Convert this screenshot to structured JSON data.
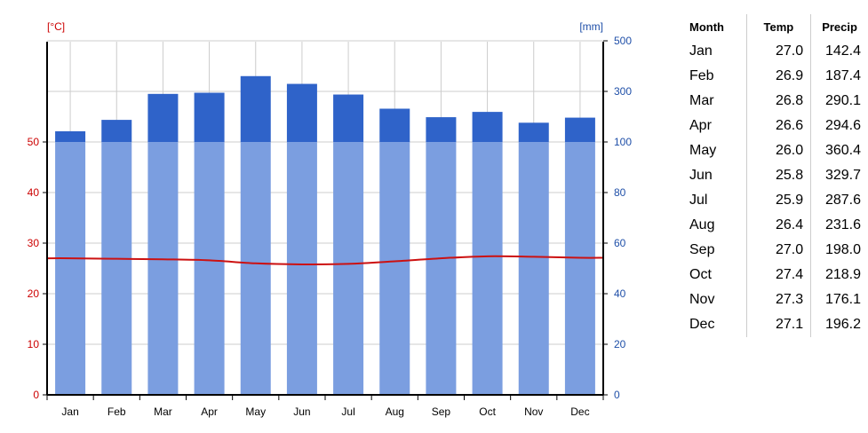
{
  "chart_data": {
    "type": "bar",
    "categories": [
      "Jan",
      "Feb",
      "Mar",
      "Apr",
      "May",
      "Jun",
      "Jul",
      "Aug",
      "Sep",
      "Oct",
      "Nov",
      "Dec"
    ],
    "left_unit": "[°C]",
    "right_unit": "[mm]",
    "left_ticks": [
      "0",
      "10",
      "20",
      "30",
      "40",
      "50"
    ],
    "right_ticks": [
      "0",
      "20",
      "40",
      "60",
      "80",
      "100",
      "300",
      "500"
    ],
    "series": [
      {
        "type": "bar",
        "axis": "right",
        "values": [
          142.4,
          187.4,
          290.1,
          294.6,
          360.4,
          329.7,
          287.6,
          231.6,
          198.0,
          218.9,
          176.1,
          196.2
        ]
      },
      {
        "type": "line",
        "axis": "left",
        "values": [
          27.0,
          26.9,
          26.8,
          26.6,
          26.0,
          25.8,
          25.9,
          26.4,
          27.0,
          27.4,
          27.3,
          27.1
        ]
      }
    ],
    "right_axis_scale": "0-100 mm linear (2 mm per °C), 100-500 mm compressed (20 mm per °C)",
    "ylim_left": [
      0,
      70
    ],
    "colors": {
      "bar_low": "#7b9ee0",
      "bar_high": "#2f63c9",
      "line": "#cc1111",
      "left_axis": "#cc0000",
      "right_axis": "#1f4fa8",
      "grid": "#cccccc"
    },
    "grid": true
  },
  "table": {
    "headers": [
      "Month",
      "Temp",
      "Precip"
    ],
    "rows": [
      [
        "Jan",
        "27.0",
        "142.4"
      ],
      [
        "Feb",
        "26.9",
        "187.4"
      ],
      [
        "Mar",
        "26.8",
        "290.1"
      ],
      [
        "Apr",
        "26.6",
        "294.6"
      ],
      [
        "May",
        "26.0",
        "360.4"
      ],
      [
        "Jun",
        "25.8",
        "329.7"
      ],
      [
        "Jul",
        "25.9",
        "287.6"
      ],
      [
        "Aug",
        "26.4",
        "231.6"
      ],
      [
        "Sep",
        "27.0",
        "198.0"
      ],
      [
        "Oct",
        "27.4",
        "218.9"
      ],
      [
        "Nov",
        "27.3",
        "176.1"
      ],
      [
        "Dec",
        "27.1",
        "196.2"
      ]
    ]
  }
}
